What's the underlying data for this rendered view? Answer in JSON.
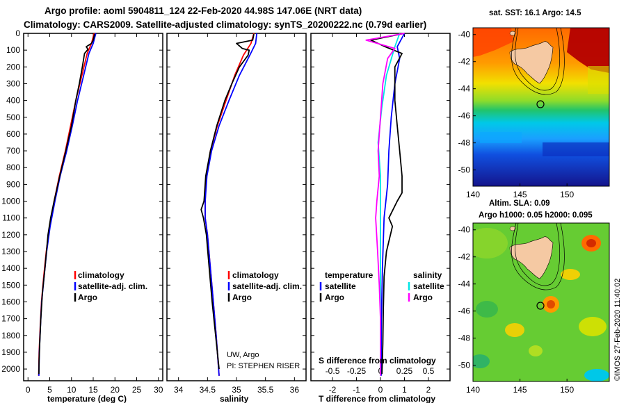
{
  "header": {
    "line1": "Argo profile: aoml 5904811_124 22-Feb-2020 44.98S 147.06E (NRT data)",
    "line2": "Climatology: CARS2009. Satellite-adjusted climatology: synTS_20200222.nc (0.79d earlier)"
  },
  "colors": {
    "climatology": "#ff0000",
    "satellite": "#0000ff",
    "argo": "#000000",
    "sat_t": "#00e5e5",
    "sat_s": "#ff00ff"
  },
  "chart_data": [
    {
      "type": "line",
      "panel": "temperature",
      "xlabel": "temperature (deg C)",
      "ylabel": "",
      "xlim": [
        -1,
        31
      ],
      "ylim": [
        2070,
        0
      ],
      "xticks": [
        "0",
        "5",
        "10",
        "15",
        "20",
        "25",
        "30"
      ],
      "xtick_values": [
        0,
        5,
        10,
        15,
        20,
        25,
        30
      ],
      "yticks": [
        "0",
        "100",
        "200",
        "300",
        "400",
        "500",
        "600",
        "700",
        "800",
        "900",
        "1000",
        "1100",
        "1200",
        "1300",
        "1400",
        "1500",
        "1600",
        "1700",
        "1800",
        "1900",
        "2000"
      ],
      "ytick_values": [
        0,
        100,
        200,
        300,
        400,
        500,
        600,
        700,
        800,
        900,
        1000,
        1100,
        1200,
        1300,
        1400,
        1500,
        1600,
        1700,
        1800,
        1900,
        2000
      ],
      "legend": [
        "climatology",
        "satellite-adj. clim.",
        "Argo"
      ],
      "series": [
        {
          "name": "climatology",
          "color_key": "climatology",
          "points": [
            [
              15.2,
              0
            ],
            [
              14.6,
              60
            ],
            [
              13.6,
              120
            ],
            [
              12.4,
              250
            ],
            [
              11.0,
              400
            ],
            [
              9.8,
              550
            ],
            [
              8.6,
              700
            ],
            [
              7.2,
              850
            ],
            [
              6.0,
              1000
            ],
            [
              5.0,
              1150
            ],
            [
              4.2,
              1300
            ],
            [
              3.6,
              1450
            ],
            [
              3.1,
              1600
            ],
            [
              2.8,
              1750
            ],
            [
              2.55,
              1900
            ],
            [
              2.45,
              2040
            ]
          ]
        },
        {
          "name": "satellite-adj. clim.",
          "color_key": "satellite",
          "points": [
            [
              15.6,
              0
            ],
            [
              15.0,
              60
            ],
            [
              14.0,
              120
            ],
            [
              12.8,
              250
            ],
            [
              11.4,
              400
            ],
            [
              10.2,
              550
            ],
            [
              8.9,
              700
            ],
            [
              7.4,
              850
            ],
            [
              6.2,
              1000
            ],
            [
              5.1,
              1150
            ],
            [
              4.3,
              1300
            ],
            [
              3.7,
              1450
            ],
            [
              3.15,
              1600
            ],
            [
              2.85,
              1750
            ],
            [
              2.6,
              1900
            ],
            [
              2.5,
              2040
            ]
          ]
        },
        {
          "name": "Argo",
          "color_key": "argo",
          "points": [
            [
              15.3,
              5
            ],
            [
              15.0,
              40
            ],
            [
              14.6,
              60
            ],
            [
              13.4,
              80
            ],
            [
              13.8,
              95
            ],
            [
              13.0,
              120
            ],
            [
              12.5,
              200
            ],
            [
              11.8,
              300
            ],
            [
              11.0,
              400
            ],
            [
              10.0,
              550
            ],
            [
              8.7,
              700
            ],
            [
              7.3,
              850
            ],
            [
              6.0,
              1000
            ],
            [
              5.2,
              1100
            ],
            [
              4.6,
              1200
            ],
            [
              3.9,
              1400
            ],
            [
              3.3,
              1550
            ],
            [
              2.95,
              1700
            ],
            [
              2.7,
              1850
            ],
            [
              2.55,
              1950
            ],
            [
              2.5,
              2030
            ]
          ]
        }
      ]
    },
    {
      "type": "line",
      "panel": "salinity",
      "xlabel": "salinity",
      "xlim": [
        33.8,
        36.2
      ],
      "ylim": [
        2070,
        0
      ],
      "xticks": [
        "34",
        "34.5",
        "35",
        "35.5",
        "36"
      ],
      "xtick_values": [
        34,
        34.5,
        35,
        35.5,
        36
      ],
      "legend": [
        "climatology",
        "satellite-adj. clim.",
        "Argo"
      ],
      "annotation": [
        "UW, Argo",
        "PI: STEPHEN RISER"
      ],
      "series": [
        {
          "name": "climatology",
          "color_key": "climatology",
          "points": [
            [
              35.3,
              0
            ],
            [
              35.25,
              60
            ],
            [
              35.12,
              130
            ],
            [
              34.97,
              250
            ],
            [
              34.82,
              400
            ],
            [
              34.67,
              550
            ],
            [
              34.55,
              700
            ],
            [
              34.48,
              850
            ],
            [
              34.46,
              1000
            ],
            [
              34.46,
              1100
            ],
            [
              34.5,
              1200
            ],
            [
              34.55,
              1400
            ],
            [
              34.6,
              1600
            ],
            [
              34.65,
              1800
            ],
            [
              34.7,
              2040
            ]
          ]
        },
        {
          "name": "satellite-adj. clim.",
          "color_key": "satellite",
          "points": [
            [
              35.35,
              0
            ],
            [
              35.33,
              60
            ],
            [
              35.23,
              130
            ],
            [
              35.05,
              250
            ],
            [
              34.87,
              400
            ],
            [
              34.7,
              550
            ],
            [
              34.57,
              700
            ],
            [
              34.49,
              850
            ],
            [
              34.46,
              1000
            ],
            [
              34.46,
              1100
            ],
            [
              34.5,
              1200
            ],
            [
              34.55,
              1400
            ],
            [
              34.6,
              1600
            ],
            [
              34.65,
              1800
            ],
            [
              34.7,
              2040
            ]
          ]
        },
        {
          "name": "Argo",
          "color_key": "argo",
          "points": [
            [
              35.3,
              5
            ],
            [
              35.28,
              40
            ],
            [
              35.0,
              60
            ],
            [
              35.05,
              75
            ],
            [
              35.1,
              90
            ],
            [
              35.22,
              100
            ],
            [
              35.2,
              130
            ],
            [
              35.05,
              200
            ],
            [
              34.92,
              300
            ],
            [
              34.8,
              400
            ],
            [
              34.66,
              550
            ],
            [
              34.55,
              700
            ],
            [
              34.47,
              850
            ],
            [
              34.44,
              1000
            ],
            [
              34.39,
              1050
            ],
            [
              34.43,
              1100
            ],
            [
              34.48,
              1200
            ],
            [
              34.53,
              1400
            ],
            [
              34.58,
              1600
            ],
            [
              34.64,
              1800
            ],
            [
              34.7,
              2000
            ]
          ]
        }
      ]
    },
    {
      "type": "line",
      "panel": "difference",
      "xlabel": "T difference from climatology",
      "xlabel_top": "S difference from climatology",
      "xlim": [
        -2.9,
        2.9
      ],
      "ylim": [
        2070,
        0
      ],
      "xticks": [
        "-2",
        "-1",
        "0",
        "1",
        "2"
      ],
      "xtick_values": [
        -2,
        -1,
        0,
        1,
        2
      ],
      "xticks_s": [
        "-0.5",
        "-0.25",
        "0",
        "0.25",
        "0.5"
      ],
      "xtick_s_values": [
        -0.5,
        -0.25,
        0,
        0.25,
        0.5
      ],
      "legend_left_title": "temperature",
      "legend_right_title": "salinity",
      "legend_left": [
        "satellite",
        "Argo"
      ],
      "legend_right": [
        "satellite",
        "Argo"
      ],
      "series": [
        {
          "name": "satellite",
          "color_key": "satellite",
          "points": [
            [
              1.0,
              0
            ],
            [
              0.7,
              80
            ],
            [
              0.8,
              150
            ],
            [
              0.6,
              300
            ],
            [
              0.45,
              500
            ],
            [
              0.35,
              700
            ],
            [
              0.3,
              900
            ],
            [
              0.15,
              1100
            ],
            [
              0.08,
              1400
            ],
            [
              0.04,
              1700
            ],
            [
              0.03,
              2040
            ]
          ]
        },
        {
          "name": "Argo",
          "color_key": "argo",
          "points": [
            [
              1.0,
              0
            ],
            [
              -0.4,
              40
            ],
            [
              0.2,
              80
            ],
            [
              0.9,
              120
            ],
            [
              0.6,
              200
            ],
            [
              0.6,
              300
            ],
            [
              0.6,
              400
            ],
            [
              0.7,
              550
            ],
            [
              0.8,
              700
            ],
            [
              0.9,
              850
            ],
            [
              0.9,
              950
            ],
            [
              0.7,
              1000
            ],
            [
              0.35,
              1100
            ],
            [
              0.5,
              1150
            ],
            [
              0.25,
              1300
            ],
            [
              0.15,
              1450
            ],
            [
              0.12,
              1650
            ],
            [
              0.1,
              1850
            ],
            [
              0.06,
              2030
            ]
          ]
        },
        {
          "name": "satellite",
          "color_key": "sat_t",
          "points": [
            [
              0.8,
              0
            ],
            [
              0.6,
              80
            ],
            [
              0.25,
              250
            ],
            [
              0.05,
              450
            ],
            [
              -0.1,
              650
            ],
            [
              0.0,
              850
            ],
            [
              0.0,
              1050
            ],
            [
              0.0,
              1300
            ],
            [
              0.0,
              1550
            ],
            [
              0.0,
              1800
            ],
            [
              0.0,
              2040
            ]
          ]
        },
        {
          "name": "Argo",
          "color_key": "sat_s",
          "points": [
            [
              1.0,
              0
            ],
            [
              -0.6,
              40
            ],
            [
              0.6,
              90
            ],
            [
              0.3,
              150
            ],
            [
              0.1,
              300
            ],
            [
              0.0,
              500
            ],
            [
              -0.1,
              700
            ],
            [
              -0.05,
              850
            ],
            [
              -0.15,
              1000
            ],
            [
              -0.2,
              1100
            ],
            [
              -0.12,
              1300
            ],
            [
              -0.05,
              1500
            ],
            [
              0.0,
              1700
            ],
            [
              0.0,
              2040
            ]
          ]
        }
      ]
    },
    {
      "type": "heatmap",
      "panel": "sst-map",
      "title": "sat. SST: 16.1 Argo: 14.5",
      "xticks": [
        "140",
        "145",
        "150"
      ],
      "xtick_values": [
        140,
        145,
        150
      ],
      "yticks": [
        "-40",
        "-42",
        "-44",
        "-46",
        "-48",
        "-50"
      ],
      "ytick_values": [
        -40,
        -42,
        -44,
        -46,
        -48,
        -50
      ],
      "xlim": [
        140,
        154.5
      ],
      "ylim": [
        -51.2,
        -39.5
      ],
      "float_position": [
        147.06,
        -44.98
      ]
    },
    {
      "type": "heatmap",
      "panel": "sla-map",
      "title": "Altim. SLA: 0.09",
      "subtitle": "Argo h1000: 0.05 h2000: 0.095",
      "xticks": [
        "140",
        "145",
        "150"
      ],
      "xtick_values": [
        140,
        145,
        150
      ],
      "yticks": [
        "-40",
        "-42",
        "-44",
        "-46",
        "-48",
        "-50"
      ],
      "ytick_values": [
        -40,
        -42,
        -44,
        -46,
        -48,
        -50
      ],
      "xlim": [
        140,
        154.5
      ],
      "ylim": [
        -51.2,
        -39.5
      ],
      "float_position": [
        147.06,
        -44.98
      ]
    }
  ],
  "credit": "©IMOS 27-Feb-2020 11:40:02"
}
